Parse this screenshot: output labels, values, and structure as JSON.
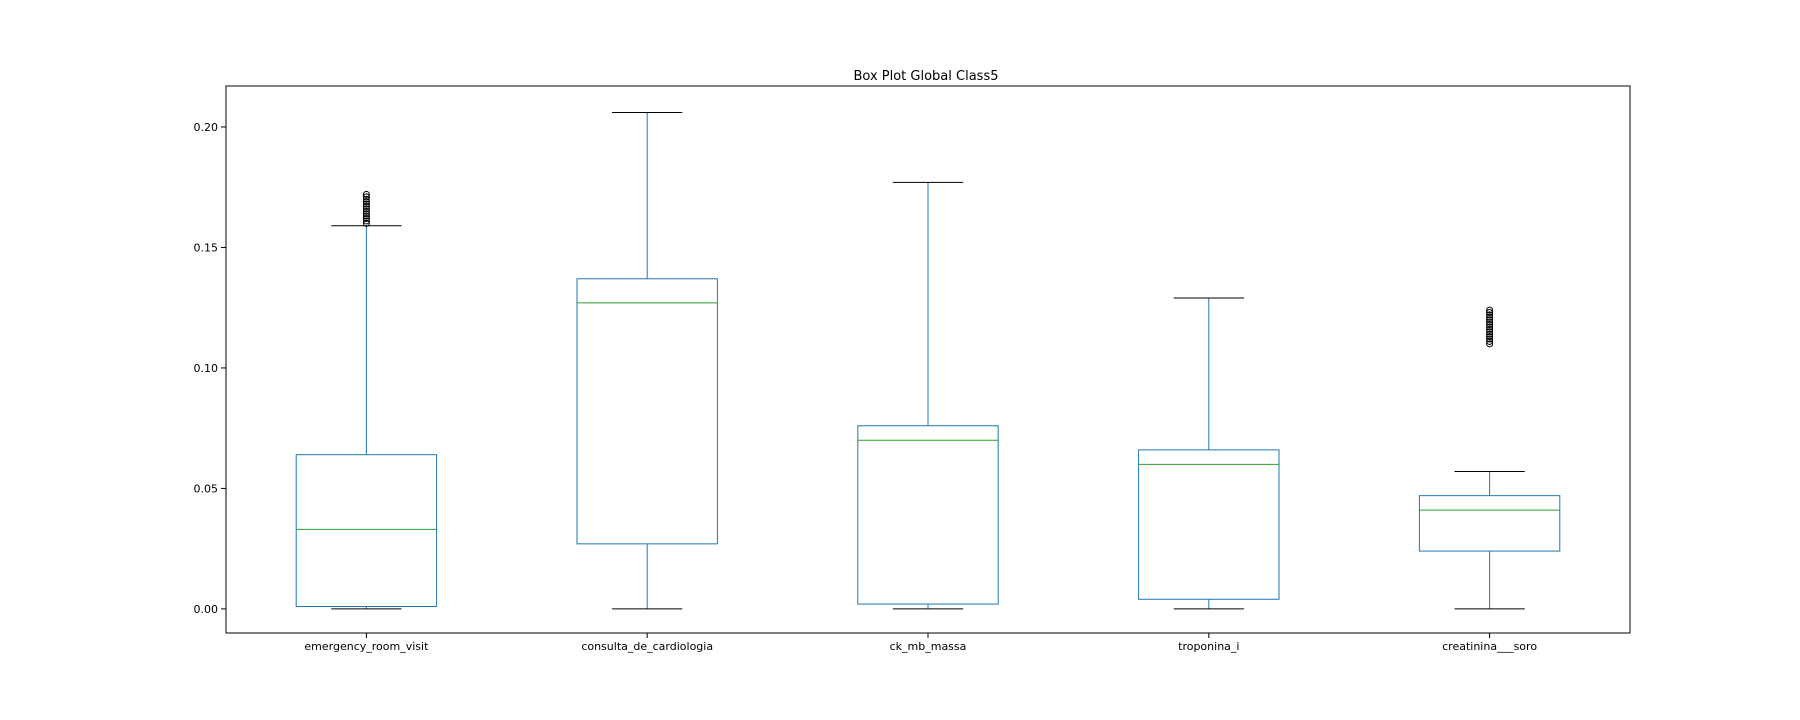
{
  "chart_data": {
    "type": "box",
    "title": "Box Plot Global Class5",
    "xlabel": "",
    "ylabel": "",
    "ylim": [
      -0.01,
      0.217
    ],
    "yticks": [
      0.0,
      0.05,
      0.1,
      0.15,
      0.2
    ],
    "ytick_labels": [
      "0.00",
      "0.05",
      "0.10",
      "0.15",
      "0.20"
    ],
    "grid": false,
    "legend": "none",
    "colors": {
      "box": "#1f77b4",
      "median": "#2ca02c",
      "cap": "#000000",
      "axes": "#000000"
    },
    "categories": [
      "emergency_room_visit",
      "consulta_de_cardiologia",
      "ck_mb_massa",
      "troponina_i",
      "creatinina___soro"
    ],
    "boxes": [
      {
        "name": "emergency_room_visit",
        "whisker_low": 0.0,
        "q1": 0.001,
        "median": 0.033,
        "q3": 0.064,
        "whisker_high": 0.159,
        "outliers": [
          0.16,
          0.161,
          0.162,
          0.163,
          0.164,
          0.165,
          0.166,
          0.167,
          0.168,
          0.169,
          0.17,
          0.171,
          0.172
        ]
      },
      {
        "name": "consulta_de_cardiologia",
        "whisker_low": 0.0,
        "q1": 0.027,
        "median": 0.127,
        "q3": 0.137,
        "whisker_high": 0.206,
        "outliers": []
      },
      {
        "name": "ck_mb_massa",
        "whisker_low": 0.0,
        "q1": 0.002,
        "median": 0.07,
        "q3": 0.076,
        "whisker_high": 0.177,
        "outliers": []
      },
      {
        "name": "troponina_i",
        "whisker_low": 0.0,
        "q1": 0.004,
        "median": 0.06,
        "q3": 0.066,
        "whisker_high": 0.129,
        "outliers": []
      },
      {
        "name": "creatinina___soro",
        "whisker_low": 0.0,
        "q1": 0.024,
        "median": 0.041,
        "q3": 0.047,
        "whisker_high": 0.057,
        "outliers": [
          0.11,
          0.111,
          0.112,
          0.113,
          0.114,
          0.115,
          0.116,
          0.117,
          0.118,
          0.119,
          0.12,
          0.121,
          0.122,
          0.123,
          0.124
        ]
      }
    ]
  }
}
